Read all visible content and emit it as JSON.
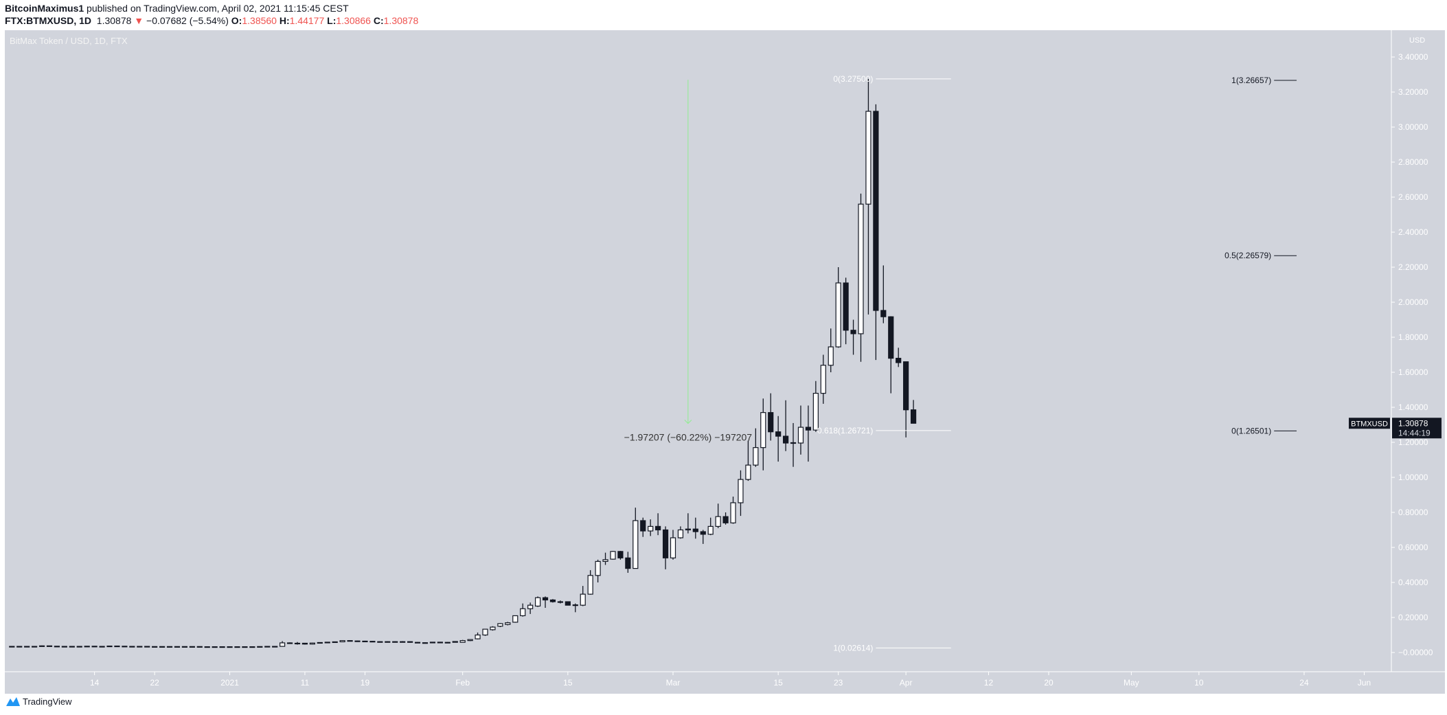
{
  "header": {
    "author": "BitcoinMaximus1",
    "published": "published on TradingView.com, April 02, 2021 11:15:45 CEST",
    "symbol": "FTX:BTMXUSD, 1D",
    "last": "1.30878",
    "change": "−0.07682 (−5.54%)",
    "o_label": "O:",
    "o": "1.38560",
    "h_label": "H:",
    "h": "1.44177",
    "l_label": "L:",
    "l": "1.30866",
    "c_label": "C:",
    "c": "1.30878",
    "down_icon": "triangle-down-icon"
  },
  "colors": {
    "pane": "#d1d4dc",
    "up_fill": "#ffffff",
    "down_fill": "#131722",
    "wick": "#131722",
    "negative": "#ef5350",
    "measure_arrow": "#90ee90",
    "axis_text": "#ffffff"
  },
  "footer": {
    "brand": "TradingView",
    "logo_icon": "tradingview-logo-icon"
  },
  "chart_data": {
    "type": "candlestick",
    "title": "BitMax Token / USD, 1D, FTX",
    "ylabel": "USD",
    "ylim": [
      -0.04,
      3.48
    ],
    "xlim": [
      "2020-12-02",
      "2021-06-12"
    ],
    "grid": false,
    "y_ticks": [
      "3.40000",
      "3.20000",
      "3.00000",
      "2.80000",
      "2.60000",
      "2.40000",
      "2.20000",
      "2.00000",
      "1.80000",
      "1.60000",
      "1.40000",
      "1.20000",
      "1.00000",
      "0.80000",
      "0.60000",
      "0.40000",
      "0.20000",
      "−0.00000"
    ],
    "x_ticks": [
      {
        "date": "2020-12-14",
        "label": "14"
      },
      {
        "date": "2020-12-22",
        "label": "22"
      },
      {
        "date": "2021-01-01",
        "label": "2021"
      },
      {
        "date": "2021-01-11",
        "label": "11"
      },
      {
        "date": "2021-01-19",
        "label": "19"
      },
      {
        "date": "2021-02-01",
        "label": "Feb"
      },
      {
        "date": "2021-02-15",
        "label": "15"
      },
      {
        "date": "2021-03-01",
        "label": "Mar"
      },
      {
        "date": "2021-03-15",
        "label": "15"
      },
      {
        "date": "2021-03-23",
        "label": "23"
      },
      {
        "date": "2021-04-01",
        "label": "Apr"
      },
      {
        "date": "2021-04-12",
        "label": "12"
      },
      {
        "date": "2021-04-20",
        "label": "20"
      },
      {
        "date": "2021-05-01",
        "label": "May"
      },
      {
        "date": "2021-05-10",
        "label": "10"
      },
      {
        "date": "2021-05-24",
        "label": "24"
      },
      {
        "date": "2021-06-01",
        "label": "Jun"
      }
    ],
    "last_price": {
      "symbol": "BTMXUSD",
      "value": "1.30878",
      "countdown": "14:44:19",
      "price": 1.30878
    },
    "candles_fields": [
      "date",
      "open",
      "high",
      "low",
      "close"
    ],
    "candles": [
      [
        "2020-12-03",
        0.035,
        0.036,
        0.034,
        0.035
      ],
      [
        "2020-12-04",
        0.035,
        0.036,
        0.034,
        0.035
      ],
      [
        "2020-12-05",
        0.035,
        0.036,
        0.034,
        0.035
      ],
      [
        "2020-12-06",
        0.035,
        0.036,
        0.034,
        0.035
      ],
      [
        "2020-12-07",
        0.035,
        0.04,
        0.034,
        0.038
      ],
      [
        "2020-12-08",
        0.038,
        0.039,
        0.035,
        0.036
      ],
      [
        "2020-12-09",
        0.036,
        0.037,
        0.034,
        0.035
      ],
      [
        "2020-12-10",
        0.035,
        0.036,
        0.034,
        0.035
      ],
      [
        "2020-12-11",
        0.035,
        0.037,
        0.034,
        0.034
      ],
      [
        "2020-12-12",
        0.034,
        0.036,
        0.033,
        0.035
      ],
      [
        "2020-12-13",
        0.035,
        0.037,
        0.034,
        0.036
      ],
      [
        "2020-12-14",
        0.036,
        0.037,
        0.034,
        0.034
      ],
      [
        "2020-12-15",
        0.034,
        0.036,
        0.033,
        0.035
      ],
      [
        "2020-12-16",
        0.035,
        0.038,
        0.034,
        0.037
      ],
      [
        "2020-12-17",
        0.037,
        0.038,
        0.035,
        0.036
      ],
      [
        "2020-12-18",
        0.036,
        0.037,
        0.034,
        0.035
      ],
      [
        "2020-12-19",
        0.035,
        0.036,
        0.034,
        0.035
      ],
      [
        "2020-12-20",
        0.035,
        0.036,
        0.034,
        0.035
      ],
      [
        "2020-12-21",
        0.035,
        0.036,
        0.033,
        0.034
      ],
      [
        "2020-12-22",
        0.034,
        0.035,
        0.033,
        0.034
      ],
      [
        "2020-12-23",
        0.034,
        0.035,
        0.033,
        0.034
      ],
      [
        "2020-12-24",
        0.034,
        0.035,
        0.033,
        0.034
      ],
      [
        "2020-12-25",
        0.034,
        0.035,
        0.033,
        0.034
      ],
      [
        "2020-12-26",
        0.034,
        0.035,
        0.033,
        0.034
      ],
      [
        "2020-12-27",
        0.034,
        0.035,
        0.033,
        0.034
      ],
      [
        "2020-12-28",
        0.034,
        0.035,
        0.032,
        0.033
      ],
      [
        "2020-12-29",
        0.033,
        0.034,
        0.032,
        0.033
      ],
      [
        "2020-12-30",
        0.033,
        0.034,
        0.032,
        0.033
      ],
      [
        "2020-12-31",
        0.033,
        0.034,
        0.032,
        0.033
      ],
      [
        "2021-01-01",
        0.033,
        0.034,
        0.031,
        0.033
      ],
      [
        "2021-01-02",
        0.033,
        0.034,
        0.032,
        0.033
      ],
      [
        "2021-01-03",
        0.033,
        0.034,
        0.032,
        0.033
      ],
      [
        "2021-01-04",
        0.033,
        0.034,
        0.032,
        0.033
      ],
      [
        "2021-01-05",
        0.033,
        0.035,
        0.032,
        0.034
      ],
      [
        "2021-01-06",
        0.034,
        0.036,
        0.033,
        0.035
      ],
      [
        "2021-01-07",
        0.035,
        0.036,
        0.033,
        0.035
      ],
      [
        "2021-01-08",
        0.035,
        0.065,
        0.033,
        0.055
      ],
      [
        "2021-01-09",
        0.055,
        0.058,
        0.05,
        0.052
      ],
      [
        "2021-01-10",
        0.052,
        0.06,
        0.045,
        0.053
      ],
      [
        "2021-01-11",
        0.053,
        0.055,
        0.045,
        0.048
      ],
      [
        "2021-01-12",
        0.048,
        0.056,
        0.046,
        0.054
      ],
      [
        "2021-01-13",
        0.054,
        0.058,
        0.052,
        0.057
      ],
      [
        "2021-01-14",
        0.057,
        0.06,
        0.055,
        0.059
      ],
      [
        "2021-01-15",
        0.059,
        0.062,
        0.057,
        0.061
      ],
      [
        "2021-01-16",
        0.061,
        0.07,
        0.06,
        0.068
      ],
      [
        "2021-01-17",
        0.068,
        0.07,
        0.063,
        0.066
      ],
      [
        "2021-01-18",
        0.066,
        0.068,
        0.063,
        0.065
      ],
      [
        "2021-01-19",
        0.065,
        0.067,
        0.063,
        0.064
      ],
      [
        "2021-01-20",
        0.064,
        0.066,
        0.06,
        0.062
      ],
      [
        "2021-01-21",
        0.062,
        0.064,
        0.059,
        0.061
      ],
      [
        "2021-01-22",
        0.061,
        0.064,
        0.058,
        0.062
      ],
      [
        "2021-01-23",
        0.062,
        0.064,
        0.06,
        0.062
      ],
      [
        "2021-01-24",
        0.062,
        0.065,
        0.06,
        0.062
      ],
      [
        "2021-01-25",
        0.062,
        0.064,
        0.056,
        0.058
      ],
      [
        "2021-01-26",
        0.058,
        0.06,
        0.055,
        0.056
      ],
      [
        "2021-01-27",
        0.056,
        0.058,
        0.053,
        0.055
      ],
      [
        "2021-01-28",
        0.055,
        0.06,
        0.054,
        0.059
      ],
      [
        "2021-01-29",
        0.059,
        0.061,
        0.057,
        0.058
      ],
      [
        "2021-01-30",
        0.058,
        0.06,
        0.057,
        0.058
      ],
      [
        "2021-01-31",
        0.058,
        0.064,
        0.057,
        0.063
      ],
      [
        "2021-02-01",
        0.058,
        0.072,
        0.057,
        0.068
      ],
      [
        "2021-02-02",
        0.068,
        0.075,
        0.065,
        0.074
      ],
      [
        "2021-02-03",
        0.078,
        0.114,
        0.075,
        0.1
      ],
      [
        "2021-02-04",
        0.1,
        0.135,
        0.095,
        0.133
      ],
      [
        "2021-02-05",
        0.13,
        0.15,
        0.125,
        0.145
      ],
      [
        "2021-02-06",
        0.15,
        0.168,
        0.145,
        0.165
      ],
      [
        "2021-02-07",
        0.16,
        0.175,
        0.155,
        0.17
      ],
      [
        "2021-02-08",
        0.173,
        0.21,
        0.17,
        0.21
      ],
      [
        "2021-02-09",
        0.21,
        0.28,
        0.205,
        0.25
      ],
      [
        "2021-02-10",
        0.25,
        0.285,
        0.22,
        0.27
      ],
      [
        "2021-02-11",
        0.265,
        0.32,
        0.26,
        0.313
      ],
      [
        "2021-02-12",
        0.313,
        0.32,
        0.255,
        0.3
      ],
      [
        "2021-02-13",
        0.3,
        0.305,
        0.285,
        0.29
      ],
      [
        "2021-02-14",
        0.29,
        0.297,
        0.28,
        0.29
      ],
      [
        "2021-02-15",
        0.29,
        0.292,
        0.27,
        0.27
      ],
      [
        "2021-02-16",
        0.27,
        0.28,
        0.23,
        0.272
      ],
      [
        "2021-02-17",
        0.27,
        0.38,
        0.265,
        0.333
      ],
      [
        "2021-02-18",
        0.333,
        0.47,
        0.33,
        0.44
      ],
      [
        "2021-02-19",
        0.44,
        0.53,
        0.4,
        0.52
      ],
      [
        "2021-02-20",
        0.52,
        0.57,
        0.5,
        0.53
      ],
      [
        "2021-02-21",
        0.533,
        0.58,
        0.53,
        0.577
      ],
      [
        "2021-02-22",
        0.577,
        0.58,
        0.53,
        0.54
      ],
      [
        "2021-02-23",
        0.54,
        0.575,
        0.455,
        0.48
      ],
      [
        "2021-02-24",
        0.48,
        0.827,
        0.48,
        0.753
      ],
      [
        "2021-02-25",
        0.753,
        0.77,
        0.66,
        0.694
      ],
      [
        "2021-02-26",
        0.694,
        0.76,
        0.665,
        0.72
      ],
      [
        "2021-02-27",
        0.72,
        0.795,
        0.67,
        0.7
      ],
      [
        "2021-02-28",
        0.7,
        0.72,
        0.475,
        0.54
      ],
      [
        "2021-03-01",
        0.54,
        0.7,
        0.53,
        0.655
      ],
      [
        "2021-03-02",
        0.655,
        0.72,
        0.65,
        0.7
      ],
      [
        "2021-03-03",
        0.7,
        0.795,
        0.68,
        0.705
      ],
      [
        "2021-03-04",
        0.705,
        0.77,
        0.65,
        0.69
      ],
      [
        "2021-03-05",
        0.69,
        0.7,
        0.62,
        0.675
      ],
      [
        "2021-03-06",
        0.675,
        0.77,
        0.67,
        0.72
      ],
      [
        "2021-03-07",
        0.72,
        0.85,
        0.71,
        0.776
      ],
      [
        "2021-03-08",
        0.776,
        0.8,
        0.73,
        0.74
      ],
      [
        "2021-03-09",
        0.74,
        0.89,
        0.735,
        0.855
      ],
      [
        "2021-03-10",
        0.855,
        1.04,
        0.78,
        0.988
      ],
      [
        "2021-03-11",
        0.988,
        1.21,
        0.98,
        1.07
      ],
      [
        "2021-03-12",
        1.07,
        1.28,
        1.06,
        1.17
      ],
      [
        "2021-03-13",
        1.17,
        1.45,
        1.04,
        1.37
      ],
      [
        "2021-03-14",
        1.37,
        1.48,
        1.21,
        1.26
      ],
      [
        "2021-03-15",
        1.26,
        1.35,
        1.09,
        1.235
      ],
      [
        "2021-03-16",
        1.235,
        1.44,
        1.15,
        1.196
      ],
      [
        "2021-03-17",
        1.196,
        1.31,
        1.06,
        1.198
      ],
      [
        "2021-03-18",
        1.196,
        1.41,
        1.13,
        1.286
      ],
      [
        "2021-03-19",
        1.286,
        1.41,
        1.09,
        1.27
      ],
      [
        "2021-03-20",
        1.27,
        1.55,
        1.26,
        1.48
      ],
      [
        "2021-03-21",
        1.48,
        1.7,
        1.42,
        1.64
      ],
      [
        "2021-03-22",
        1.64,
        1.85,
        1.6,
        1.745
      ],
      [
        "2021-03-23",
        1.745,
        2.2,
        1.74,
        2.11
      ],
      [
        "2021-03-24",
        2.11,
        2.14,
        1.76,
        1.84
      ],
      [
        "2021-03-25",
        1.84,
        1.9,
        1.7,
        1.82
      ],
      [
        "2021-03-26",
        1.82,
        2.62,
        1.66,
        2.56
      ],
      [
        "2021-03-27",
        2.56,
        3.275,
        1.93,
        3.09
      ],
      [
        "2021-03-28",
        3.09,
        3.13,
        1.67,
        1.953
      ],
      [
        "2021-03-29",
        1.953,
        2.21,
        1.88,
        1.917
      ],
      [
        "2021-03-30",
        1.917,
        1.92,
        1.48,
        1.68
      ],
      [
        "2021-03-31",
        1.68,
        1.74,
        1.63,
        1.655
      ],
      [
        "2021-04-01",
        1.66,
        1.66,
        1.228,
        1.3856
      ],
      [
        "2021-04-02",
        1.3856,
        1.44177,
        1.30866,
        1.30878
      ]
    ],
    "fib_left": {
      "color": "#ffffff",
      "start": "2021-03-28",
      "end": "2021-04-07",
      "levels": [
        {
          "label": "0(3.27500)",
          "price": 3.275
        },
        {
          "label": "0.618(1.26721)",
          "price": 1.26721
        },
        {
          "label": "1(0.02614)",
          "price": 0.02614
        }
      ]
    },
    "fib_right": {
      "color": "#131722",
      "start": "2021-05-20",
      "end": "2021-05-23",
      "levels": [
        {
          "label": "1(3.26657)",
          "price": 3.26657
        },
        {
          "label": "0.5(2.26579)",
          "price": 2.26579
        },
        {
          "label": "0(1.26501)",
          "price": 1.26501
        }
      ]
    },
    "measure": {
      "date": "2021-03-03",
      "from": 3.27,
      "to": 1.3,
      "label": "−1.97207 (−60.22%) −197207"
    }
  }
}
